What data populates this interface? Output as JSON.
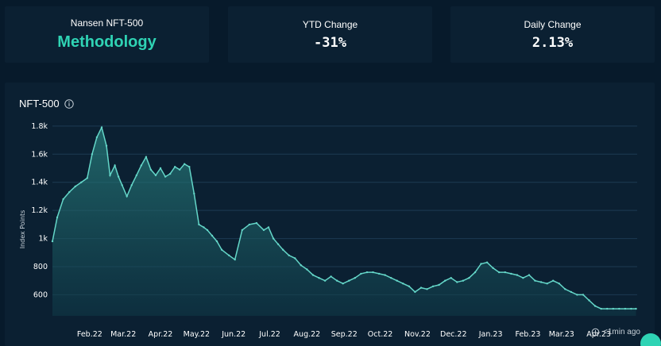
{
  "stats": [
    {
      "label": "Nansen NFT-500",
      "value": "Methodology"
    },
    {
      "label": "YTD Change",
      "value": "-31%"
    },
    {
      "label": "Daily Change",
      "value": "2.13%"
    }
  ],
  "footer": {
    "updated": "<1min ago"
  },
  "colors": {
    "accent": "#2fd3b4",
    "line": "#64d6c8",
    "background": "#071a2b",
    "card": "#0b2032"
  },
  "icons": {
    "info": "info-icon",
    "refresh": "clock-refresh-icon"
  },
  "chart_data": {
    "type": "area",
    "title": "NFT-500",
    "ylabel": "Index Points",
    "xlabel": "",
    "ylim": [
      450,
      1850
    ],
    "yticks": [
      {
        "value": 600,
        "label": "600"
      },
      {
        "value": 800,
        "label": "800"
      },
      {
        "value": 1000,
        "label": "1k"
      },
      {
        "value": 1200,
        "label": "1.2k"
      },
      {
        "value": 1400,
        "label": "1.4k"
      },
      {
        "value": 1600,
        "label": "1.6k"
      },
      {
        "value": 1800,
        "label": "1.8k"
      }
    ],
    "xticks": [
      "Feb.22",
      "Mar.22",
      "Apr.22",
      "May.22",
      "Jun.22",
      "Jul.22",
      "Aug.22",
      "Sep.22",
      "Oct.22",
      "Nov.22",
      "Dec.22",
      "Jan.23",
      "Feb.23",
      "Mar.23",
      "Apr.23"
    ],
    "grid": true,
    "x": [
      "2022-01-01",
      "2022-01-05",
      "2022-01-10",
      "2022-01-15",
      "2022-01-20",
      "2022-01-25",
      "2022-01-30",
      "2022-02-03",
      "2022-02-07",
      "2022-02-11",
      "2022-02-15",
      "2022-02-18",
      "2022-02-22",
      "2022-02-25",
      "2022-02-28",
      "2022-03-04",
      "2022-03-08",
      "2022-03-12",
      "2022-03-16",
      "2022-03-20",
      "2022-03-24",
      "2022-03-28",
      "2022-04-01",
      "2022-04-05",
      "2022-04-09",
      "2022-04-13",
      "2022-04-17",
      "2022-04-21",
      "2022-04-25",
      "2022-04-29",
      "2022-05-03",
      "2022-05-07",
      "2022-05-10",
      "2022-05-14",
      "2022-05-18",
      "2022-05-22",
      "2022-05-28",
      "2022-06-02",
      "2022-06-08",
      "2022-06-14",
      "2022-06-20",
      "2022-06-26",
      "2022-06-30",
      "2022-07-04",
      "2022-07-08",
      "2022-07-12",
      "2022-07-17",
      "2022-07-22",
      "2022-07-27",
      "2022-08-01",
      "2022-08-06",
      "2022-08-11",
      "2022-08-16",
      "2022-08-21",
      "2022-08-26",
      "2022-08-31",
      "2022-09-05",
      "2022-09-10",
      "2022-09-15",
      "2022-09-20",
      "2022-09-25",
      "2022-09-30",
      "2022-10-05",
      "2022-10-10",
      "2022-10-15",
      "2022-10-20",
      "2022-10-25",
      "2022-10-30",
      "2022-11-04",
      "2022-11-09",
      "2022-11-14",
      "2022-11-19",
      "2022-11-24",
      "2022-11-29",
      "2022-12-04",
      "2022-12-09",
      "2022-12-14",
      "2022-12-19",
      "2022-12-24",
      "2022-12-29",
      "2023-01-03",
      "2023-01-08",
      "2023-01-13",
      "2023-01-18",
      "2023-01-23",
      "2023-01-28",
      "2023-02-02",
      "2023-02-07",
      "2023-02-12",
      "2023-02-17",
      "2023-02-22",
      "2023-02-27",
      "2023-03-04",
      "2023-03-09",
      "2023-03-14",
      "2023-03-19",
      "2023-03-24",
      "2023-03-29",
      "2023-04-03",
      "2023-04-08",
      "2023-04-13",
      "2023-04-18",
      "2023-04-23",
      "2023-04-28",
      "2023-05-02"
    ],
    "values": [
      980,
      1150,
      1280,
      1330,
      1370,
      1400,
      1430,
      1600,
      1720,
      1790,
      1660,
      1450,
      1520,
      1440,
      1380,
      1300,
      1380,
      1450,
      1520,
      1580,
      1490,
      1450,
      1500,
      1440,
      1460,
      1510,
      1490,
      1530,
      1510,
      1320,
      1100,
      1080,
      1060,
      1020,
      980,
      920,
      880,
      850,
      1060,
      1100,
      1110,
      1060,
      1080,
      1000,
      960,
      920,
      880,
      860,
      810,
      780,
      740,
      720,
      700,
      730,
      700,
      680,
      700,
      720,
      750,
      760,
      760,
      750,
      740,
      720,
      700,
      680,
      660,
      620,
      650,
      640,
      660,
      670,
      700,
      720,
      690,
      700,
      720,
      760,
      820,
      830,
      790,
      760,
      760,
      750,
      740,
      720,
      740,
      700,
      690,
      680,
      700,
      680,
      640,
      620,
      600,
      600,
      560,
      520,
      500,
      500,
      500,
      500,
      500,
      500,
      500
    ]
  }
}
